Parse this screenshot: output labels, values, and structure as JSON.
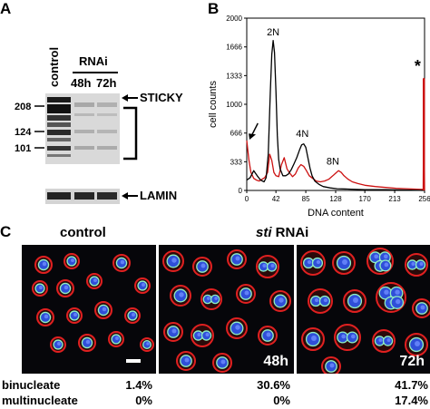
{
  "panels": {
    "a": "A",
    "b": "B",
    "c": "C"
  },
  "blot": {
    "control_label": "control",
    "rnai_label": "RNAi",
    "lanes": [
      "48h",
      "72h"
    ],
    "mw_markers": [
      "208",
      "124",
      "101"
    ],
    "sticky_label": "STICKY",
    "lamin_label": "LAMIN"
  },
  "chart_data": {
    "type": "line",
    "xlabel": "DNA content",
    "ylabel": "cell counts",
    "xticks": [
      "0",
      "42",
      "85",
      "128",
      "170",
      "213",
      "256"
    ],
    "yticks": [
      "0",
      "333",
      "666",
      "1000",
      "1333",
      "1666",
      "2000"
    ],
    "xlim": [
      0,
      256
    ],
    "ylim": [
      0,
      2000
    ],
    "peak_labels": [
      "2N",
      "4N",
      "8N"
    ],
    "annotation": "*",
    "series": [
      {
        "color": "#000000",
        "x": [
          0,
          5,
          10,
          15,
          20,
          25,
          28,
          31,
          34,
          36,
          38,
          40,
          42,
          44,
          46,
          48,
          52,
          56,
          60,
          64,
          68,
          72,
          76,
          79,
          82,
          85,
          88,
          91,
          94,
          98,
          104,
          110,
          120,
          130,
          150,
          170,
          200,
          230,
          256
        ],
        "y": [
          120,
          150,
          230,
          170,
          120,
          100,
          150,
          420,
          1150,
          1580,
          1740,
          1600,
          1150,
          640,
          360,
          250,
          170,
          170,
          190,
          240,
          310,
          380,
          470,
          530,
          540,
          500,
          380,
          260,
          170,
          110,
          70,
          45,
          30,
          20,
          15,
          10,
          8,
          5,
          0
        ]
      },
      {
        "color": "#cc1111",
        "x": [
          0,
          3,
          6,
          10,
          14,
          18,
          22,
          26,
          30,
          33,
          36,
          39,
          42,
          46,
          50,
          54,
          58,
          62,
          66,
          70,
          74,
          78,
          82,
          86,
          90,
          95,
          100,
          106,
          112,
          118,
          124,
          128,
          132,
          136,
          140,
          146,
          152,
          160,
          170,
          185,
          200,
          215,
          230,
          245,
          254,
          255,
          256
        ],
        "y": [
          580,
          360,
          210,
          140,
          120,
          110,
          130,
          150,
          210,
          420,
          350,
          210,
          170,
          160,
          300,
          380,
          250,
          200,
          160,
          190,
          260,
          300,
          280,
          230,
          170,
          140,
          110,
          100,
          110,
          130,
          170,
          200,
          230,
          210,
          170,
          130,
          100,
          80,
          60,
          45,
          35,
          25,
          20,
          15,
          12,
          1300,
          0
        ]
      }
    ]
  },
  "micrographs": {
    "control_header": "control",
    "sti_italic": "sti",
    "rnai_suffix": " RNAi",
    "time_48": "48h",
    "time_72": "72h"
  },
  "stats": {
    "binucleate_label": "binucleate",
    "multinucleate_label": "multinucleate",
    "binucleate": [
      "1.4%",
      "30.6%",
      "41.7%"
    ],
    "multinucleate": [
      "0%",
      "0%",
      "17.4%"
    ]
  }
}
